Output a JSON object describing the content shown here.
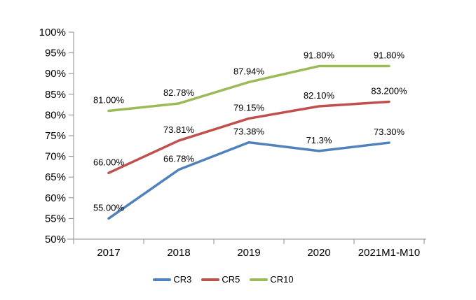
{
  "chart_data": {
    "type": "line",
    "categories": [
      "2017",
      "2018",
      "2019",
      "2020",
      "2021M1-M10"
    ],
    "series": [
      {
        "name": "CR3",
        "color": "#4F81BD",
        "values": [
          55.0,
          66.78,
          73.38,
          71.3,
          73.3
        ],
        "labels": [
          "55.00%",
          "66.78%",
          "73.38%",
          "71.3%",
          "73.30%"
        ]
      },
      {
        "name": "CR5",
        "color": "#C0504D",
        "values": [
          66.0,
          73.81,
          79.15,
          82.1,
          83.2
        ],
        "labels": [
          "66.00%",
          "73.81%",
          "79.15%",
          "82.10%",
          "83.200%"
        ]
      },
      {
        "name": "CR10",
        "color": "#9BBB59",
        "values": [
          81.0,
          82.78,
          87.94,
          91.8,
          91.8
        ],
        "labels": [
          "81.00%",
          "82.78%",
          "87.94%",
          "91.80%",
          "91.80%"
        ]
      }
    ],
    "ylim": [
      50,
      100
    ],
    "y_ticks": [
      {
        "value": 50,
        "label": "50%"
      },
      {
        "value": 55,
        "label": "55%"
      },
      {
        "value": 60,
        "label": "60%"
      },
      {
        "value": 65,
        "label": "65%"
      },
      {
        "value": 70,
        "label": "70%"
      },
      {
        "value": 75,
        "label": "75%"
      },
      {
        "value": 80,
        "label": "80%"
      },
      {
        "value": 85,
        "label": "85%"
      },
      {
        "value": 90,
        "label": "90%"
      },
      {
        "value": 95,
        "label": "95%"
      },
      {
        "value": 100,
        "label": "100%"
      }
    ],
    "grid": false,
    "legend_position": "bottom",
    "axis_color": "#8C8C8C",
    "text_color": "#000000"
  }
}
